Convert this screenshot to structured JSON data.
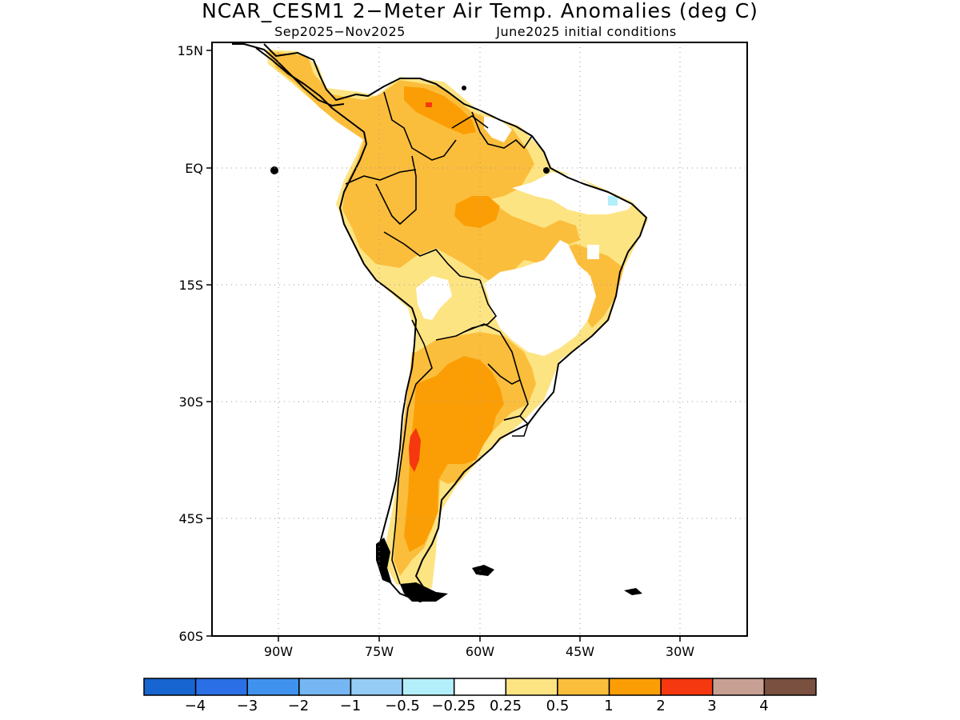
{
  "title": "NCAR_CESM1 2−Meter Air Temp. Anomalies (deg C)",
  "subtitle_left": "Sep2025−Nov2025",
  "subtitle_right": "June2025 initial conditions",
  "axes": {
    "lon_ticks": [
      "90W",
      "75W",
      "60W",
      "45W",
      "30W"
    ],
    "lat_ticks": [
      "15N",
      "EQ",
      "15S",
      "30S",
      "45S",
      "60S"
    ],
    "lon_range": [
      -100,
      -20
    ],
    "lat_range": [
      -60,
      15
    ],
    "grid": "dotted"
  },
  "colorbar": {
    "colors": [
      "#1765d0",
      "#2a6fe6",
      "#3f93ee",
      "#76b6f2",
      "#94ccf5",
      "#b3eefb",
      "#ffffff",
      "#fde483",
      "#fbbe3c",
      "#fb9e05",
      "#f5380f",
      "#c8a093",
      "#7a5040"
    ],
    "labels": [
      "−4",
      "−3",
      "−2",
      "−1",
      "−0.5",
      "−0.25",
      "0.25",
      "0.5",
      "1",
      "2",
      "3",
      "4"
    ]
  },
  "colors": {
    "white": "#ffffff",
    "pale_yellow": "#fde483",
    "light_orange": "#fbbe3c",
    "orange": "#fb9e05",
    "red": "#f5380f",
    "light_cyan": "#b3eefb"
  }
}
